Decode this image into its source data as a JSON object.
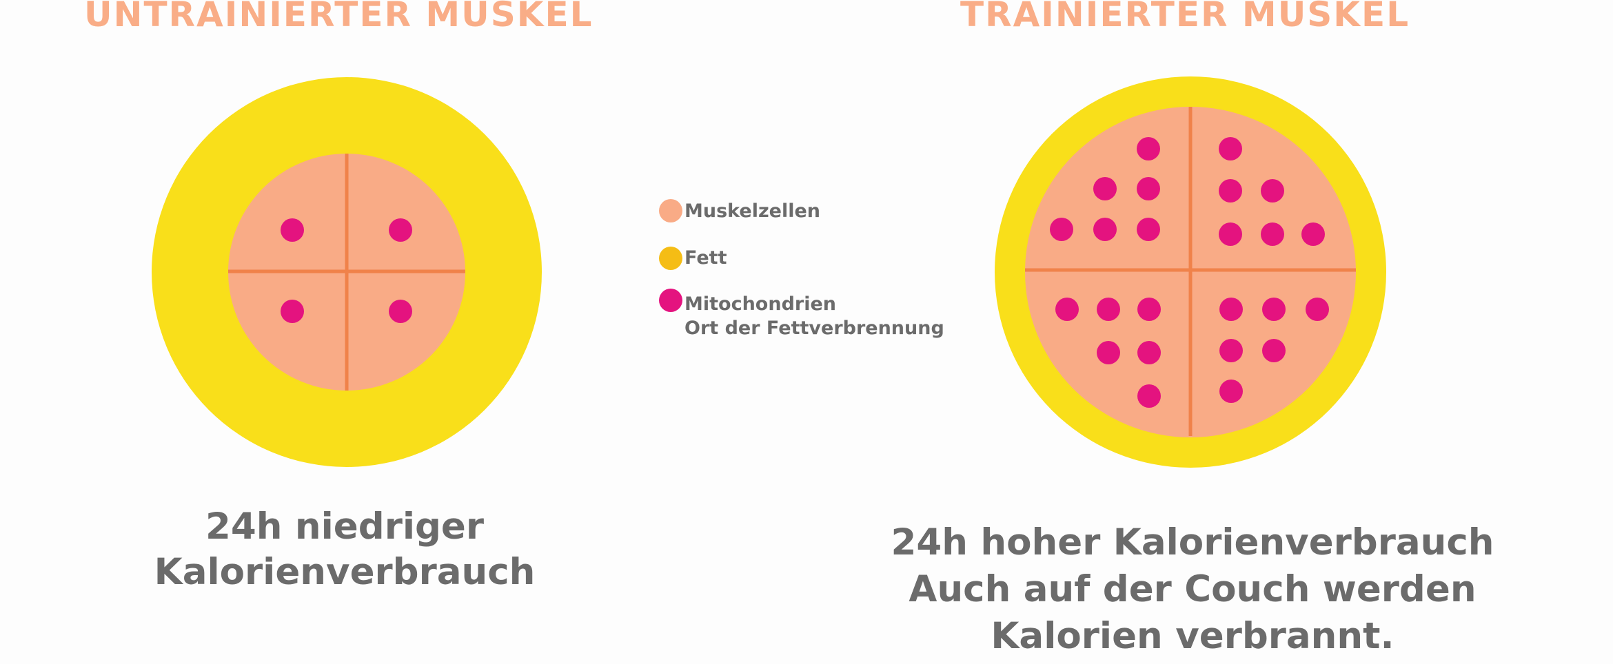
{
  "titles": {
    "left": "UNTRAINIERTER  MUSKEL",
    "right": "TRAINIERTER  MUSKEL"
  },
  "legend": {
    "muscle_cells": "Muskelzellen",
    "fat": "Fett",
    "mitochondria": "Mitochondrien",
    "mitochondria_note": "Ort der Fettverbrennung"
  },
  "captions": {
    "left_line1": "24h niedriger",
    "left_line2": "Kalorienverbrauch",
    "right_line1": "24h hoher Kalorienverbrauch",
    "right_line2": "Auch auf der Couch werden",
    "right_line3": "Kalorien verbrannt."
  },
  "colors": {
    "fat": "#f9df1a",
    "muscle": "#f9ab86",
    "divider": "#f0824a",
    "mitochondria": "#e4137f",
    "title": "#f9ad87",
    "text": "#6b6b6b",
    "legend_fat": "#f5bd15"
  },
  "mitochondria_counts": {
    "untrained": 4,
    "trained": 24
  }
}
